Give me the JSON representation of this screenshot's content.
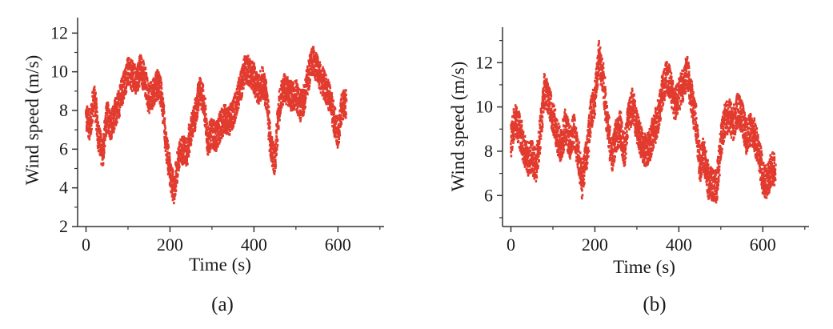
{
  "figure": {
    "color": "#e23b2e",
    "axis_color": "#333333"
  },
  "chart_data": [
    {
      "type": "scatter",
      "caption": "(a)",
      "xlabel": "Time (s)",
      "ylabel": "Wind speed (m/s)",
      "xlim": [
        -20,
        710
      ],
      "ylim": [
        2,
        12.8
      ],
      "xticks": [
        0,
        200,
        400,
        600
      ],
      "yticks": [
        2,
        4,
        6,
        8,
        10,
        12
      ],
      "y_minor": [
        3,
        5,
        7,
        9,
        11
      ],
      "series": [
        {
          "x": [
            0,
            10,
            20,
            30,
            40,
            50,
            60,
            70,
            80,
            90,
            100,
            110,
            120,
            130,
            140,
            150,
            160,
            170,
            180,
            190,
            200,
            210,
            220,
            230,
            240,
            250,
            260,
            270,
            280,
            290,
            300,
            310,
            320,
            330,
            340,
            350,
            360,
            370,
            380,
            390,
            400,
            410,
            420,
            430,
            440,
            450,
            460,
            470,
            480,
            490,
            500,
            510,
            520,
            530,
            540,
            550,
            560,
            570,
            580,
            590,
            600,
            610
          ],
          "y": [
            7.6,
            7.2,
            8.8,
            6.6,
            5.7,
            7.8,
            7.2,
            7.9,
            8.5,
            9.3,
            10.0,
            9.8,
            9.5,
            10.2,
            9.6,
            8.6,
            8.9,
            9.4,
            8.8,
            6.3,
            4.8,
            3.8,
            5.5,
            6.0,
            5.8,
            7.0,
            7.7,
            9.0,
            8.6,
            6.4,
            6.9,
            6.6,
            7.2,
            7.6,
            7.4,
            7.8,
            8.6,
            9.4,
            10.2,
            10.0,
            9.7,
            9.0,
            9.5,
            8.8,
            6.0,
            5.4,
            8.2,
            9.2,
            9.0,
            8.7,
            8.9,
            8.2,
            8.6,
            9.8,
            10.6,
            10.2,
            9.6,
            9.2,
            8.7,
            7.6,
            6.8,
            8.3
          ]
        }
      ]
    },
    {
      "type": "scatter",
      "caption": "(b)",
      "xlabel": "Time (s)",
      "ylabel": "Wind speed (m/s)",
      "xlim": [
        -20,
        710
      ],
      "ylim": [
        4.6,
        13.6
      ],
      "xticks": [
        0,
        200,
        400,
        600
      ],
      "yticks": [
        6,
        8,
        10,
        12
      ],
      "y_minor": [
        5,
        7,
        9,
        11,
        13
      ],
      "series": [
        {
          "x": [
            0,
            10,
            20,
            30,
            40,
            50,
            60,
            70,
            80,
            90,
            100,
            110,
            120,
            130,
            140,
            150,
            160,
            170,
            180,
            190,
            200,
            210,
            220,
            230,
            240,
            250,
            260,
            270,
            280,
            290,
            300,
            310,
            320,
            330,
            340,
            350,
            360,
            370,
            380,
            390,
            400,
            410,
            420,
            430,
            440,
            450,
            460,
            470,
            480,
            490,
            500,
            510,
            520,
            530,
            540,
            550,
            560,
            570,
            580,
            590,
            600,
            610,
            620
          ],
          "y": [
            8.4,
            9.5,
            9.0,
            8.2,
            7.6,
            7.8,
            7.3,
            8.8,
            10.8,
            10.4,
            9.6,
            8.7,
            8.2,
            9.2,
            8.4,
            8.9,
            7.9,
            6.6,
            7.8,
            9.6,
            10.4,
            12.3,
            11.2,
            9.3,
            7.8,
            8.6,
            9.1,
            7.9,
            9.5,
            10.1,
            9.2,
            8.4,
            8.0,
            8.2,
            8.9,
            9.5,
            10.6,
            11.4,
            11.0,
            10.1,
            10.5,
            11.0,
            11.6,
            10.4,
            9.4,
            7.4,
            7.9,
            6.6,
            6.5,
            6.4,
            8.4,
            9.4,
            9.6,
            9.2,
            9.9,
            9.6,
            8.6,
            9.0,
            8.7,
            8.1,
            6.8,
            6.6,
            7.2
          ]
        }
      ]
    }
  ]
}
